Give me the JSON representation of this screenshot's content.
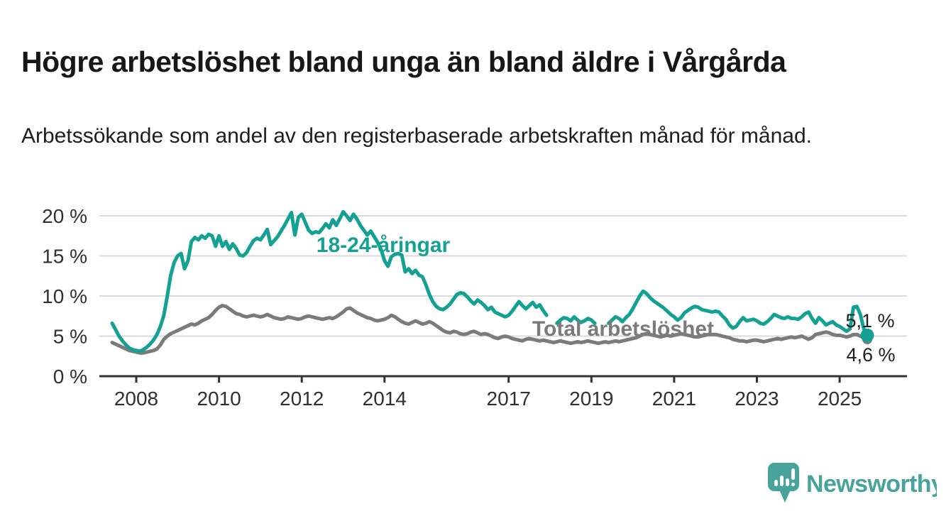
{
  "header": {
    "title": "Högre arbetslöshet bland unga än bland äldre i Vårgårda",
    "subtitle": "Arbetssökande som andel av den registerbaserade arbetskraften månad för månad."
  },
  "footer": {
    "brand": "Newsworthy"
  },
  "colors": {
    "background": "#ffffff",
    "accent_teal": "#12a192",
    "series_gray": "#7b7b7b",
    "grid": "#dbdbdb",
    "axis": "#333333",
    "tick_text": "#303030",
    "text": "#1f1f1f",
    "logo_teal": "#47a39b",
    "logo_glyph": "#ffffff"
  },
  "chart_data": {
    "type": "line",
    "title": "Högre arbetslöshet bland unga än bland äldre i Vårgårda",
    "subtitle": "Arbetssökande som andel av den registerbaserade arbetskraften månad för månad.",
    "frequency": "monthly",
    "start": {
      "year": 2007,
      "month": 6
    },
    "end": {
      "year": 2025,
      "month": 9
    },
    "x_axis": {
      "unit": "year",
      "ticks": [
        2008,
        2010,
        2012,
        2014,
        2017,
        2019,
        2021,
        2023,
        2025
      ],
      "tick_labels": [
        "2008",
        "2010",
        "2012",
        "2014",
        "2017",
        "2019",
        "2021",
        "2023",
        "2025"
      ]
    },
    "y_axis": {
      "ticks": [
        0,
        5,
        10,
        15,
        20
      ],
      "tick_labels": [
        "0 %",
        "5 %",
        "10 %",
        "15 %",
        "20 %"
      ],
      "range": [
        0,
        20.8
      ],
      "grid": true
    },
    "legend_position": "inline-labels",
    "series": [
      {
        "name": "18-24-åringar",
        "label": "18-24-åringar",
        "color": "#12a192",
        "end_label": "5,1 %",
        "end_value": 5.1,
        "values": [
          6.6,
          5.8,
          5.0,
          4.4,
          3.9,
          3.5,
          3.3,
          3.2,
          3.1,
          3.3,
          3.6,
          4.0,
          4.5,
          5.2,
          6.2,
          7.6,
          10.0,
          12.6,
          14.2,
          15.0,
          15.3,
          13.4,
          14.4,
          16.8,
          17.3,
          17.0,
          17.5,
          17.2,
          17.7,
          17.5,
          16.2,
          17.5,
          16.2,
          16.8,
          15.8,
          16.5,
          15.9,
          15.1,
          15.0,
          15.4,
          16.2,
          16.9,
          17.2,
          17.0,
          17.6,
          18.3,
          16.4,
          16.9,
          17.4,
          18.1,
          18.8,
          19.6,
          20.4,
          17.6,
          19.8,
          20.2,
          19.2,
          18.2,
          17.8,
          18.0,
          17.9,
          18.4,
          19.0,
          18.5,
          19.5,
          18.8,
          19.6,
          20.5,
          20.0,
          19.4,
          20.2,
          19.6,
          18.8,
          18.2,
          17.6,
          18.1,
          17.4,
          16.7,
          15.8,
          14.4,
          13.7,
          14.9,
          15.2,
          15.3,
          15.1,
          13.0,
          13.4,
          12.8,
          13.2,
          12.6,
          12.4,
          11.4,
          10.2,
          9.3,
          8.7,
          8.4,
          8.3,
          8.6,
          9.0,
          9.6,
          10.2,
          10.4,
          10.3,
          9.9,
          9.4,
          9.0,
          9.5,
          9.2,
          8.8,
          8.3,
          8.6,
          8.0,
          7.8,
          7.6,
          7.4,
          7.6,
          8.1,
          8.7,
          9.3,
          8.8,
          8.4,
          8.8,
          9.2,
          8.6,
          8.9,
          8.2,
          7.6,
          null,
          null,
          6.6,
          7.0,
          7.3,
          7.2,
          6.9,
          7.4,
          7.0,
          6.7,
          6.9,
          7.2,
          7.0,
          6.6,
          null,
          null,
          null,
          6.6,
          7.0,
          7.4,
          7.2,
          6.8,
          7.3,
          7.7,
          8.4,
          9.2,
          10.0,
          10.6,
          10.3,
          9.8,
          9.4,
          9.1,
          8.8,
          8.5,
          8.1,
          7.7,
          7.4,
          7.0,
          7.3,
          7.9,
          8.2,
          8.5,
          8.7,
          8.6,
          8.3,
          8.2,
          8.1,
          8.0,
          8.1,
          8.0,
          7.5,
          7.1,
          6.4,
          6.0,
          6.2,
          6.8,
          7.3,
          6.9,
          7.0,
          7.1,
          6.9,
          6.6,
          6.5,
          6.8,
          7.2,
          7.7,
          7.5,
          7.3,
          7.2,
          7.4,
          7.2,
          7.2,
          7.1,
          7.4,
          7.8,
          8.0,
          7.2,
          6.6,
          7.3,
          6.9,
          6.4,
          6.6,
          6.8,
          6.4,
          6.2,
          5.9,
          5.6,
          5.9,
          8.6,
          8.7,
          7.7,
          5.9,
          5.1
        ]
      },
      {
        "name": "Total arbetslöshet",
        "label": "Total arbetslöshet",
        "color": "#7b7b7b",
        "end_label": "4,6 %",
        "end_value": 4.6,
        "values": [
          4.2,
          4.0,
          3.8,
          3.6,
          3.4,
          3.2,
          3.1,
          3.0,
          2.9,
          2.9,
          3.0,
          3.1,
          3.2,
          3.4,
          3.9,
          4.6,
          5.0,
          5.3,
          5.5,
          5.7,
          5.9,
          6.1,
          6.3,
          6.5,
          6.4,
          6.6,
          6.9,
          7.1,
          7.3,
          7.7,
          8.2,
          8.6,
          8.8,
          8.7,
          8.4,
          8.1,
          7.8,
          7.7,
          7.5,
          7.4,
          7.5,
          7.6,
          7.5,
          7.4,
          7.5,
          7.7,
          7.5,
          7.3,
          7.2,
          7.1,
          7.2,
          7.4,
          7.3,
          7.2,
          7.1,
          7.2,
          7.4,
          7.5,
          7.4,
          7.3,
          7.2,
          7.1,
          7.2,
          7.3,
          7.2,
          7.4,
          7.7,
          8.0,
          8.4,
          8.5,
          8.2,
          7.9,
          7.7,
          7.5,
          7.3,
          7.2,
          7.0,
          6.9,
          7.0,
          7.1,
          7.3,
          7.6,
          7.4,
          7.1,
          6.8,
          6.6,
          6.5,
          6.7,
          6.9,
          6.7,
          6.5,
          6.6,
          6.8,
          6.6,
          6.3,
          6.0,
          5.7,
          5.5,
          5.4,
          5.6,
          5.5,
          5.3,
          5.2,
          5.3,
          5.5,
          5.6,
          5.4,
          5.2,
          5.3,
          5.2,
          5.0,
          4.8,
          4.7,
          4.9,
          5.0,
          4.9,
          4.7,
          4.6,
          4.5,
          4.4,
          4.6,
          4.7,
          4.6,
          4.5,
          4.4,
          4.5,
          4.4,
          4.3,
          4.2,
          4.3,
          4.4,
          4.3,
          4.2,
          4.1,
          4.2,
          4.3,
          4.2,
          4.3,
          4.4,
          4.3,
          4.2,
          4.1,
          4.2,
          4.3,
          4.2,
          4.3,
          4.4,
          4.3,
          4.4,
          4.5,
          4.6,
          4.7,
          4.8,
          5.0,
          5.2,
          5.3,
          5.2,
          5.1,
          5.0,
          4.9,
          5.0,
          5.1,
          5.0,
          5.1,
          5.2,
          5.3,
          5.2,
          5.1,
          5.0,
          4.9,
          4.9,
          5.0,
          5.1,
          5.2,
          5.2,
          5.2,
          5.1,
          5.0,
          4.9,
          4.8,
          4.6,
          4.5,
          4.4,
          4.4,
          4.3,
          4.4,
          4.5,
          4.5,
          4.4,
          4.3,
          4.4,
          4.5,
          4.6,
          4.7,
          4.6,
          4.7,
          4.8,
          4.9,
          4.8,
          4.9,
          5.0,
          4.8,
          4.6,
          4.8,
          5.2,
          5.3,
          5.4,
          5.5,
          5.4,
          5.2,
          5.1,
          5.1,
          5.0,
          4.9,
          5.0,
          5.2,
          5.2,
          5.0,
          4.8,
          4.6
        ]
      }
    ]
  }
}
